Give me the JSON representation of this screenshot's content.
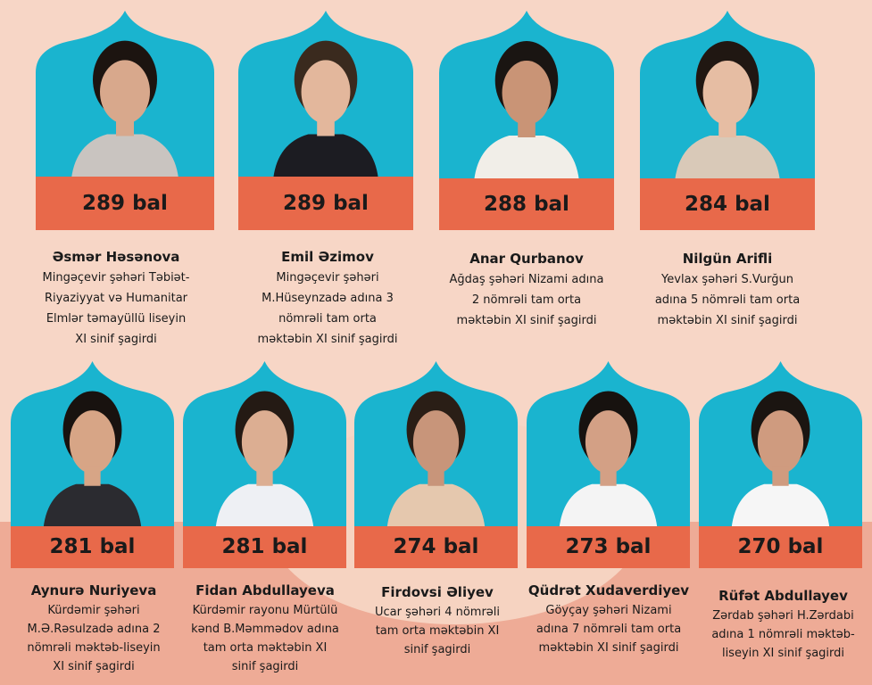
{
  "colors": {
    "arch": "#1ab4cf",
    "band": "#e8694a",
    "background": "#f7d6c6",
    "lower_background": "#eeab96"
  },
  "students": [
    {
      "score": "289 bal",
      "name": "Əsmər Həsənova",
      "lines": [
        "Mingəçevir şəhəri Təbiət-",
        "Riyaziyyat və Humanitar",
        "Elmlər təmayüllü liseyin",
        "XI sinif şagirdi"
      ]
    },
    {
      "score": "289 bal",
      "name": "Emil Əzimov",
      "lines": [
        "Mingəçevir şəhəri",
        "M.Hüseynzadə adına 3",
        "nömrəli tam orta",
        "məktəbin XI sinif şagirdi"
      ]
    },
    {
      "score": "288 bal",
      "name": "Anar Qurbanov",
      "lines": [
        "Ağdaş şəhəri Nizami adına",
        "2 nömrəli tam orta",
        "məktəbin XI sinif şagirdi"
      ]
    },
    {
      "score": "284 bal",
      "name": "Nilgün Arifli",
      "lines": [
        "Yevlax şəhəri S.Vurğun",
        "adına 5 nömrəli tam orta",
        "məktəbin XI sinif şagirdi"
      ]
    },
    {
      "score": "281 bal",
      "name": "Aynurə Nuriyeva",
      "lines": [
        "Kürdəmir şəhəri",
        "M.Ə.Rəsulzadə adına 2",
        "nömrəli məktəb-liseyin",
        "XI sinif şagirdi"
      ]
    },
    {
      "score": "281 bal",
      "name": "Fidan Abdullayeva",
      "lines": [
        "Kürdəmir rayonu Mürtülü",
        "kənd B.Məmmədov adına",
        "tam orta məktəbin XI",
        "sinif şagirdi"
      ]
    },
    {
      "score": "274 bal",
      "name": "Firdovsi Əliyev",
      "lines": [
        "Ucar şəhəri 4 nömrəli",
        "tam orta məktəbin XI",
        "sinif şagirdi"
      ]
    },
    {
      "score": "273 bal",
      "name": "Qüdrət Xudaverdiyev",
      "lines": [
        "Göyçay şəhəri Nizami",
        "adına 7 nömrəli tam orta",
        "məktəbin XI sinif şagirdi"
      ]
    },
    {
      "score": "270 bal",
      "name": "Rüfət Abdullayev",
      "lines": [
        "Zərdab şəhəri H.Zərdabi",
        "adına 1 nömrəli məktəb-",
        "liseyin XI sinif şagirdi"
      ]
    }
  ]
}
